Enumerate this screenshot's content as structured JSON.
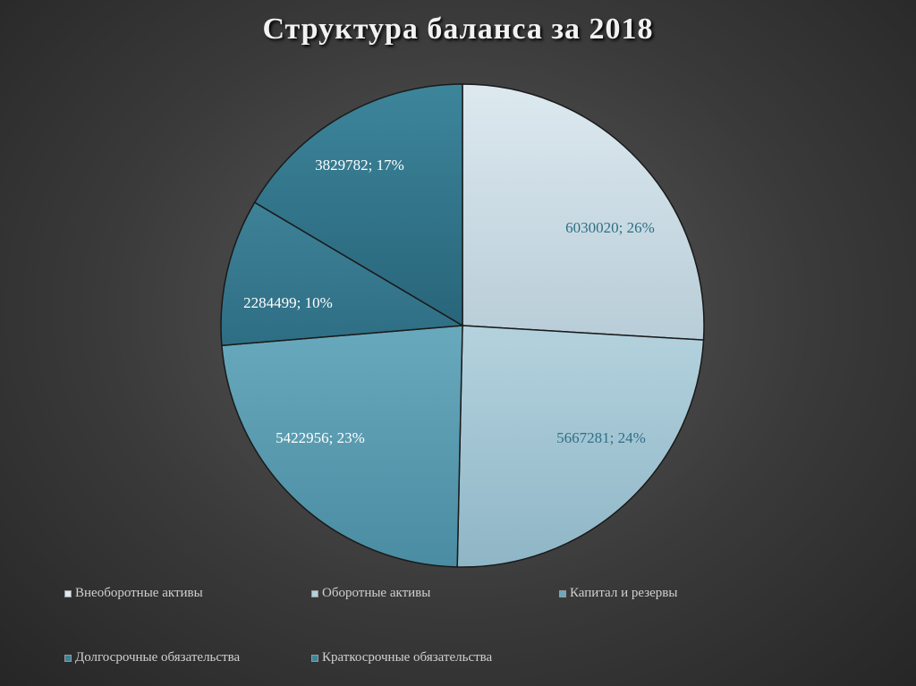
{
  "title": "Структура баланса за 2018",
  "chart_data": {
    "type": "pie",
    "title": "Структура баланса за 2018",
    "legend_position": "bottom",
    "slices": [
      {
        "name": "Внеоборотные активы",
        "value": 6030020,
        "percent": 26,
        "label": "6030020; 26%",
        "color": "#dde9ef",
        "color_dark": "#b8cdd8",
        "label_color": "#2f6f86"
      },
      {
        "name": "Оборотные активы",
        "value": 5667281,
        "percent": 24,
        "label": "5667281; 24%",
        "color": "#b4d2de",
        "color_dark": "#8fb6c6",
        "label_color": "#2f6f86"
      },
      {
        "name": "Капитал и резервы",
        "value": 5422956,
        "percent": 23,
        "label": "5422956; 23%",
        "color": "#69a9bd",
        "color_dark": "#4a8ca2",
        "label_color": "#ffffff"
      },
      {
        "name": "Долгосрочные обязательства",
        "value": 2284499,
        "percent": 10,
        "label": "2284499; 10%",
        "color": "#3e8298",
        "color_dark": "#2e6e84",
        "label_color": "#ffffff"
      },
      {
        "name": "Краткосрочные обязательства",
        "value": 3829782,
        "percent": 17,
        "label": "3829782; 17%",
        "color": "#3d859b",
        "color_dark": "#28657a",
        "label_color": "#ffffff"
      }
    ]
  }
}
